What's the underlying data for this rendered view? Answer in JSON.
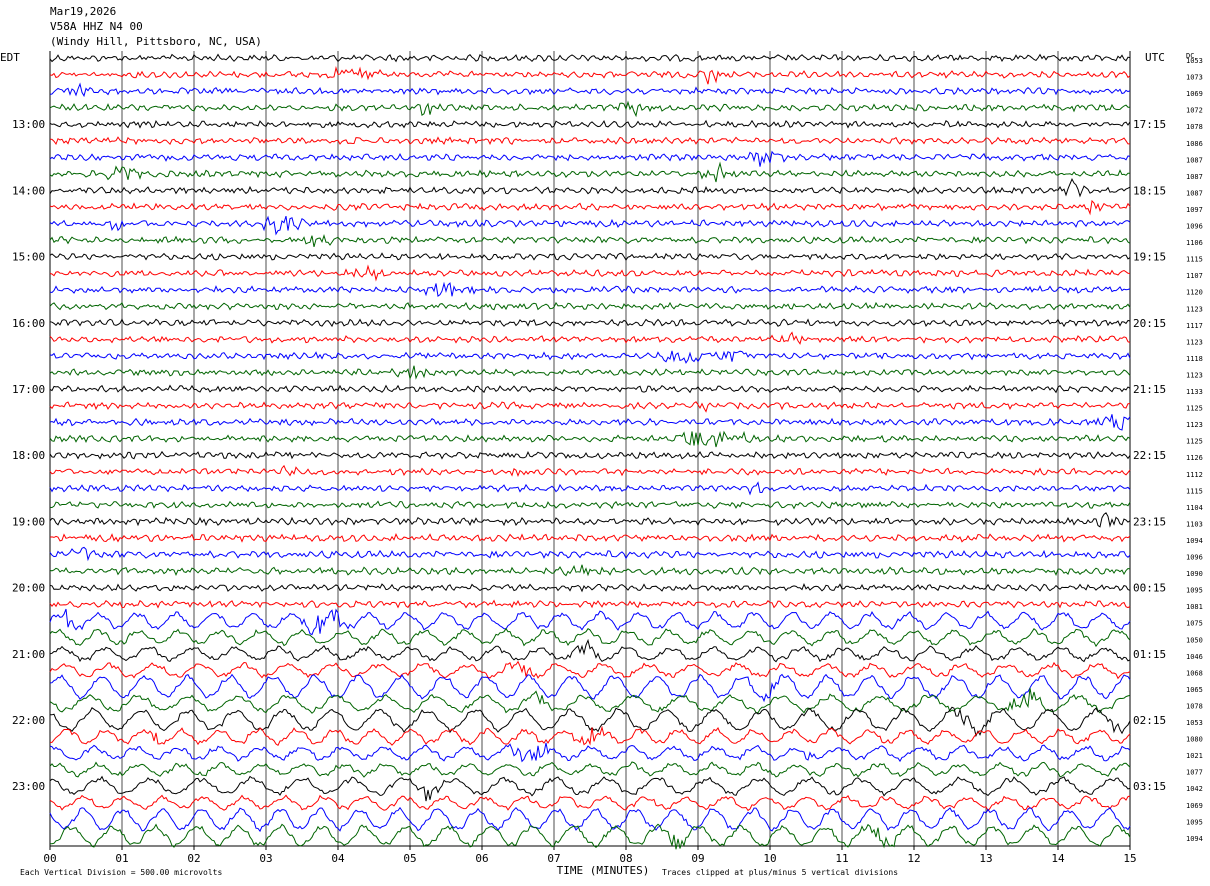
{
  "header": {
    "date": "Mar19,2026",
    "station": "V58A HHZ N4 00",
    "location": "(Windy Hill, Pittsboro, NC, USA)"
  },
  "chart_data": {
    "type": "line",
    "title": "Mar19,2026 V58A HHZ N4 00 (Windy Hill, Pittsboro, NC, USA)",
    "left_axis_label": "EDT",
    "right_axis_label": "UTC",
    "right_column_label": "DC",
    "xlabel": "TIME (MINUTES)",
    "xlim": [
      0,
      15
    ],
    "x_ticks": [
      "00",
      "01",
      "02",
      "03",
      "04",
      "05",
      "06",
      "07",
      "08",
      "09",
      "10",
      "11",
      "12",
      "13",
      "14",
      "15"
    ],
    "left_hour_labels": [
      "13:00",
      "14:00",
      "15:00",
      "16:00",
      "17:00",
      "18:00",
      "19:00",
      "20:00",
      "21:00",
      "22:00",
      "23:00"
    ],
    "right_hour_labels": [
      "17:15",
      "18:15",
      "19:15",
      "20:15",
      "21:15",
      "22:15",
      "23:15",
      "00:15",
      "01:15",
      "02:15",
      "03:15"
    ],
    "dc_offsets": [
      1053,
      1073,
      1069,
      1072,
      1078,
      1086,
      1087,
      1087,
      1087,
      1097,
      1096,
      1106,
      1115,
      1107,
      1120,
      1123,
      1117,
      1123,
      1118,
      1123,
      1133,
      1125,
      1123,
      1125,
      1126,
      1112,
      1115,
      1104,
      1103,
      1094,
      1096,
      1090,
      1095,
      1081,
      1075,
      1050,
      1046,
      1068,
      1065,
      1078,
      1053,
      1080,
      1021,
      1077,
      1042,
      1069,
      1095,
      1094
    ],
    "trace_colors": [
      "#000000",
      "#ff0000",
      "#0000ff",
      "#006400"
    ],
    "footer_left": "Each Vertical Division =  500.00 microvolts",
    "footer_right": "Traces clipped at plus/minus 5 vertical divisions",
    "grid": true
  }
}
